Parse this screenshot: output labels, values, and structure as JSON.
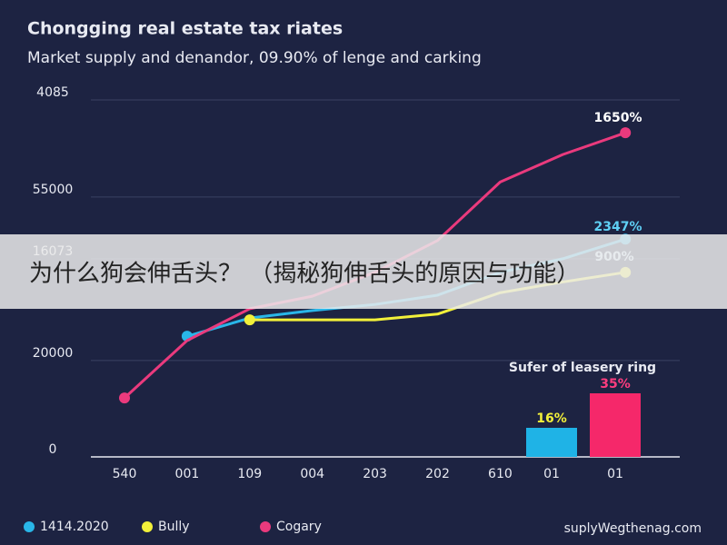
{
  "chart_data": [
    {
      "type": "line",
      "title": "Chongging real estate tax riates",
      "subtitle": "Market supply and denandor, 09.90% of lenge and carking",
      "categories": [
        "540",
        "001",
        "109",
        "004",
        "203",
        "202",
        "610",
        null,
        null
      ],
      "ylim": [
        0,
        100
      ],
      "yticks": [
        0,
        {
          "value": 27,
          "label": "20000"
        },
        {
          "value": 55.5,
          "label": "16073"
        },
        {
          "value": 72.8,
          "label": "55000"
        },
        {
          "value": 100,
          "label": "4085"
        }
      ],
      "grid": true,
      "series": [
        {
          "name": "1414.2020",
          "color": "#29b6e8",
          "values": [
            null,
            33.8,
            38.9,
            41,
            42.7,
            45.3,
            51.7,
            55.5,
            61
          ]
        },
        {
          "name": "Bully",
          "color": "#f2f03a",
          "values": [
            null,
            null,
            38.4,
            38.4,
            38.4,
            40,
            46,
            49,
            51.7
          ]
        },
        {
          "name": "Cogary",
          "color": "#ea3a7d",
          "values": [
            16.5,
            32.6,
            41.5,
            45,
            51.7,
            60.6,
            77,
            84.7,
            90.8
          ]
        }
      ],
      "annotations": [
        "1650%",
        "2347%",
        "900%"
      ]
    },
    {
      "type": "bar",
      "title": "Sufer of leasery ring",
      "categories": [
        "01",
        "01"
      ],
      "values": [
        16,
        35
      ],
      "value_labels": [
        "16%",
        "35%"
      ],
      "colors": [
        "#1fb3e6",
        "#f5286a"
      ]
    }
  ],
  "banner": "为什么狗会伸舌头？ （揭秘狗伸舌头的原因与功能）",
  "footer": "suplyWegthenag.com"
}
